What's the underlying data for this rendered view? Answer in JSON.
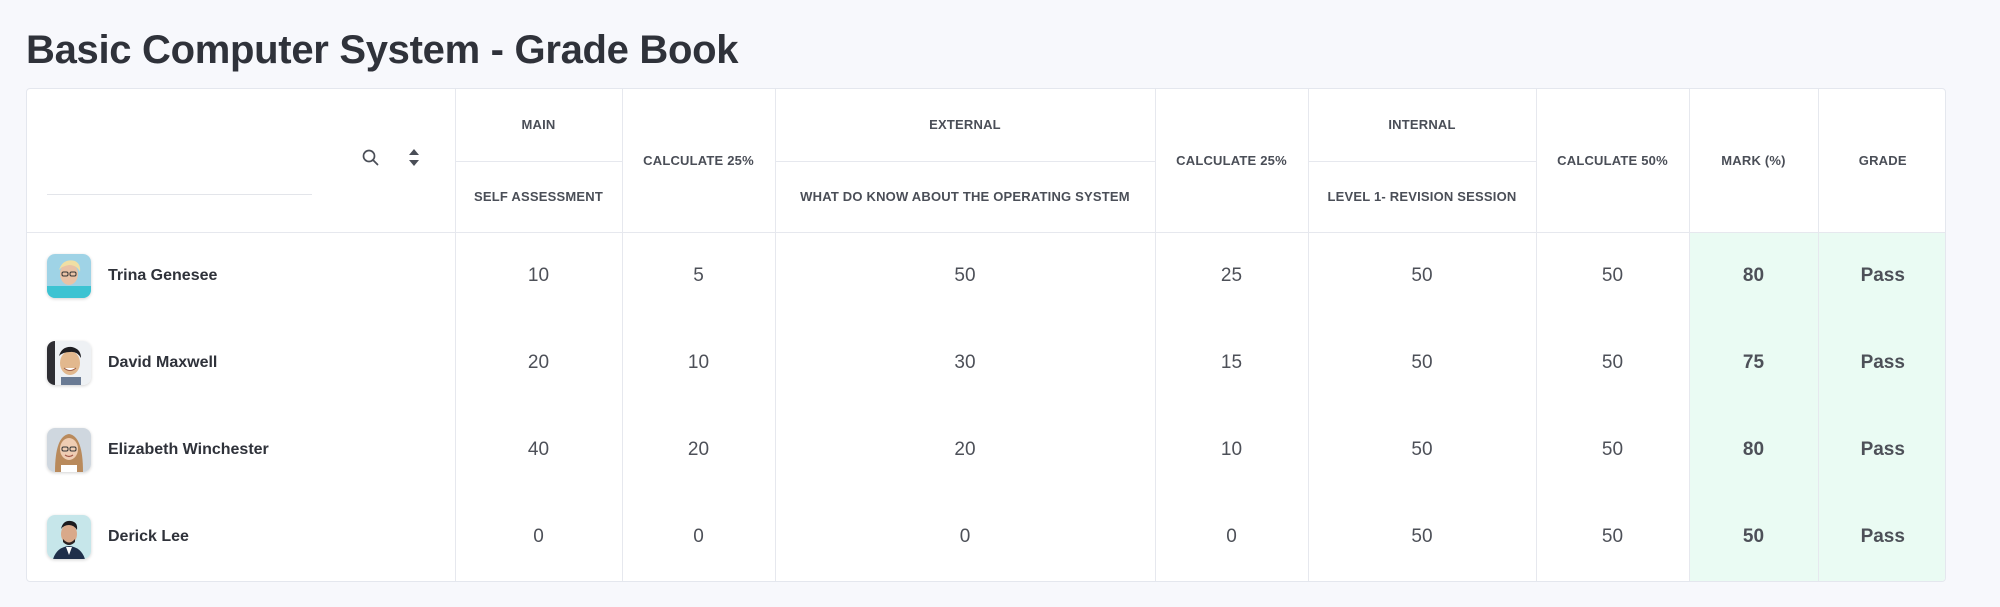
{
  "page": {
    "title": "Basic Computer System - Grade Book"
  },
  "search": {
    "placeholder": ""
  },
  "columns": {
    "main": {
      "group": "MAIN",
      "item": "SELF ASSESSMENT"
    },
    "calc_main": "CALCULATE 25%",
    "external": {
      "group": "EXTERNAL",
      "item": "WHAT DO KNOW ABOUT THE OPERATING SYSTEM"
    },
    "calc_external": "CALCULATE 25%",
    "internal": {
      "group": "INTERNAL",
      "item": "LEVEL 1- REVISION SESSION"
    },
    "calc_internal": "CALCULATE 50%",
    "mark": "MARK (%)",
    "grade": "GRADE"
  },
  "students": [
    {
      "name": "Trina Genesee",
      "self_assessment": "10",
      "calc_main": "5",
      "external": "50",
      "calc_external": "25",
      "internal": "50",
      "calc_internal": "50",
      "mark": "80",
      "grade": "Pass"
    },
    {
      "name": "David Maxwell",
      "self_assessment": "20",
      "calc_main": "10",
      "external": "30",
      "calc_external": "15",
      "internal": "50",
      "calc_internal": "50",
      "mark": "75",
      "grade": "Pass"
    },
    {
      "name": "Elizabeth Winchester",
      "self_assessment": "40",
      "calc_main": "20",
      "external": "20",
      "calc_external": "10",
      "internal": "50",
      "calc_internal": "50",
      "mark": "80",
      "grade": "Pass"
    },
    {
      "name": "Derick Lee",
      "self_assessment": "0",
      "calc_main": "0",
      "external": "0",
      "calc_external": "0",
      "internal": "50",
      "calc_internal": "50",
      "mark": "50",
      "grade": "Pass"
    }
  ],
  "colors": {
    "pass": "#1e8c5c",
    "highlight_bg": "#eafbf3",
    "accent": "#2f323a"
  },
  "icons": {
    "search": "search-icon",
    "sort": "sort-icon"
  }
}
